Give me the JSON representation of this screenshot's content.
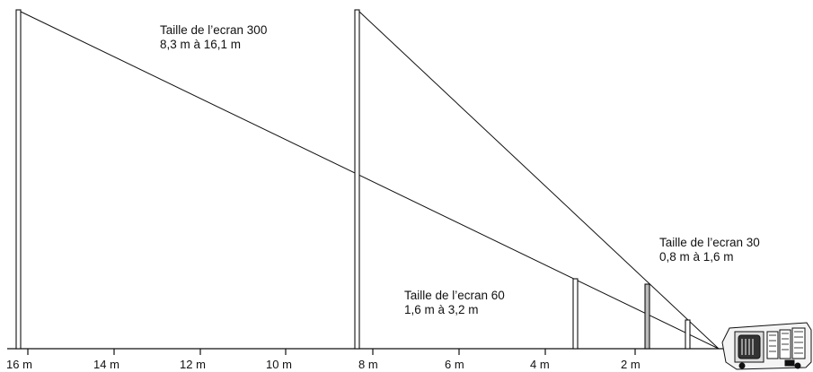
{
  "annotations": {
    "screen_300": {
      "title": "Taille de l’ecran 300",
      "range": "8,3 m à 16,1 m"
    },
    "screen_60": {
      "title": "Taille de l’ecran 60",
      "range": "1,6 m à 3,2 m"
    },
    "screen_30": {
      "title": "Taille de l’ecran 30",
      "range": "0,8 m à 1,6 m"
    }
  },
  "distance_axis": {
    "labels": [
      "16 m",
      "14 m",
      "12 m",
      "10 m",
      "8 m",
      "6 m",
      "4 m",
      "2 m"
    ]
  }
}
